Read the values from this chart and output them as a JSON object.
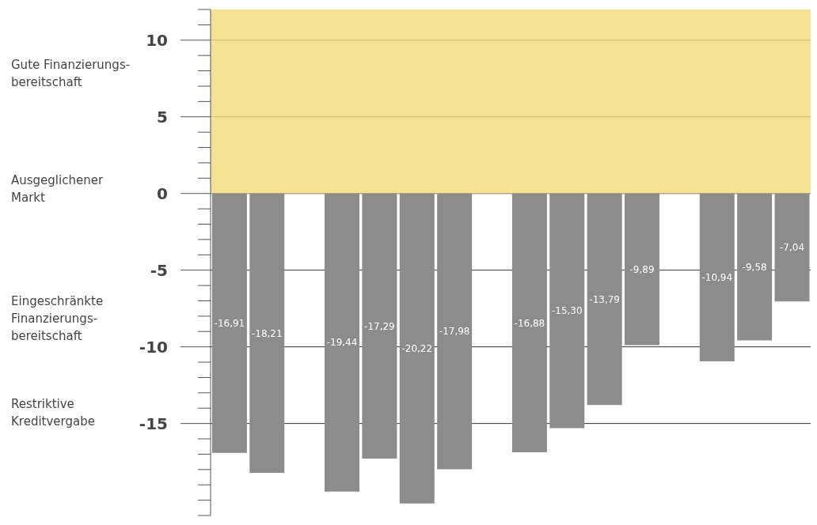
{
  "chart_data": {
    "type": "bar",
    "categories": [
      null,
      null,
      null,
      null,
      null,
      null,
      null,
      null,
      null,
      null,
      null,
      null,
      null,
      null,
      null,
      null
    ],
    "values": [
      -16.91,
      -18.21,
      null,
      -19.44,
      -17.29,
      -20.22,
      -17.98,
      null,
      -16.88,
      -15.3,
      -13.79,
      -9.89,
      null,
      -10.94,
      -9.58,
      -7.04
    ],
    "value_labels": [
      "-16,91",
      "-18,21",
      null,
      "-19,44",
      "-17,29",
      "-20,22",
      "-17,98",
      null,
      "-16,88",
      "-15,30",
      "-13,79",
      "-9,89",
      null,
      "-10,94",
      "-9,58",
      "-7,04"
    ],
    "color": "#8c8c8d",
    "ylim": [
      -21,
      12
    ],
    "yticks": [
      {
        "value": -21,
        "label": null
      },
      {
        "value": -20,
        "label": null
      },
      {
        "value": -19,
        "label": null
      },
      {
        "value": -18,
        "label": null
      },
      {
        "value": -17,
        "label": null
      },
      {
        "value": -16,
        "label": null
      },
      -15,
      {
        "value": -14,
        "label": null
      },
      {
        "value": -13,
        "label": null
      },
      {
        "value": -12,
        "label": null
      },
      {
        "value": -11,
        "label": null
      },
      -10,
      {
        "value": -9,
        "label": null
      },
      {
        "value": -8,
        "label": null
      },
      {
        "value": -7,
        "label": null
      },
      {
        "value": -6,
        "label": null
      },
      -5,
      {
        "value": -4,
        "label": null
      },
      {
        "value": -3,
        "label": null
      },
      {
        "value": -2,
        "label": null
      },
      {
        "value": -1,
        "label": null
      },
      0,
      {
        "value": 1,
        "label": null
      },
      {
        "value": 2,
        "label": null
      },
      {
        "value": 3,
        "label": null
      },
      {
        "value": 4,
        "label": null
      },
      5,
      {
        "value": 6,
        "label": null
      },
      {
        "value": 7,
        "label": null
      },
      {
        "value": 8,
        "label": null
      },
      {
        "value": 9,
        "label": null
      },
      10,
      {
        "value": 11,
        "label": null
      },
      {
        "value": 12,
        "label": null
      }
    ],
    "grid": "y",
    "bands": [
      {
        "axis": "y",
        "from": 0,
        "to": 12,
        "color": "#f0dc78"
      }
    ],
    "annotations": [
      "Gute Finanzierungs-\nbereitschaft",
      "Ausgeglichener\nMarkt",
      "Eingeschränkte Finanzierungs-\nbereitschaft",
      "Restriktive\nKreditvergabe"
    ]
  }
}
